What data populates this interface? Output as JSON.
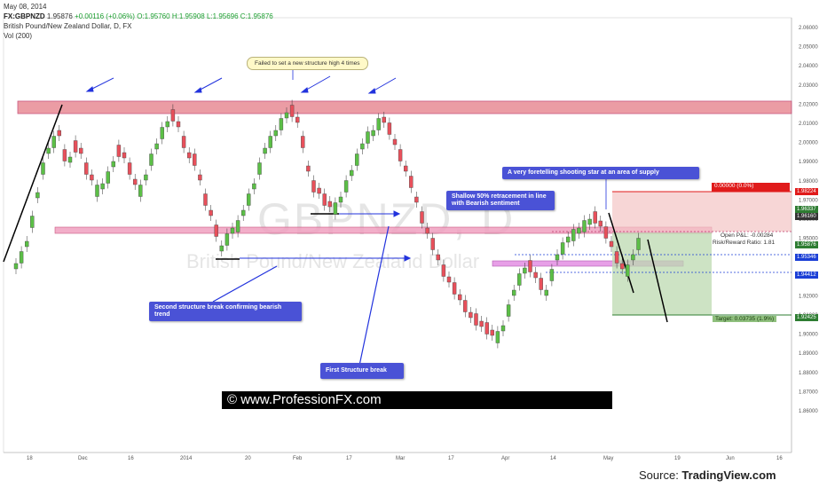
{
  "header": {
    "date": "May 08, 2014",
    "symbol": "FX:GBPNZD",
    "price": "1.95876",
    "change": "+0.00116 (+0.06%)",
    "ohlc_open": "O:1.95760",
    "ohlc_high": "H:1.95908",
    "ohlc_low": "L:1.95696",
    "ohlc_close": "C:1.95876",
    "title": "British Pound/New Zealand Dollar, D, FX",
    "volume": "Vol (200)"
  },
  "price_axis": [
    "2.06000",
    "2.05000",
    "2.04000",
    "2.03000",
    "2.02000",
    "2.01000",
    "2.00000",
    "1.99000",
    "1.98000",
    "1.97000",
    "1.96000",
    "1.95000",
    "1.94000",
    "1.93000",
    "1.92000",
    "1.91000",
    "1.90000",
    "1.89000",
    "1.88000",
    "1.87000",
    "1.86000"
  ],
  "time_axis": [
    "18",
    "Dec",
    "16",
    "2014",
    "20",
    "Feb",
    "17",
    "Mar",
    "17",
    "Apr",
    "14",
    "May",
    "19",
    "Jun",
    "16"
  ],
  "price_tags": [
    {
      "label": "1.98224",
      "color": "#e01b1b"
    },
    {
      "label": "1.96337",
      "color": "#2e7d32"
    },
    {
      "label": "1.96160",
      "color": "#333333"
    },
    {
      "label": "1.95876",
      "color": "#2e7d32"
    },
    {
      "label": "1.95346",
      "color": "#1b3fd6"
    },
    {
      "label": "1.94412",
      "color": "#1b3fd6"
    },
    {
      "label": "1.92425",
      "color": "#2e7d32"
    }
  ],
  "annotations": {
    "failed_high": "Failed to set a new structure high 4 times",
    "shooting_star": "A very foretelling shooting star at an area of supply",
    "shallow_retrace": "Shallow 50% retracement in line with Bearish sentiment",
    "second_break": "Second structure break confirming bearish trend",
    "first_break": "First Structure break"
  },
  "position": {
    "open_pl": "Open P&L: -0.00284",
    "risk_reward": "Risk/Reward Ratio: 1.81",
    "target": "Target: 0.03735 (1.9%)",
    "stop_value": "0.00000 (0.0%)"
  },
  "watermark": {
    "symbol": "GBPNZD, D",
    "name": "British Pound/New Zealand Dollar"
  },
  "banner": "© www.ProfessionFX.com",
  "source": {
    "prefix": "Source: ",
    "brand": "TradingView.com"
  }
}
